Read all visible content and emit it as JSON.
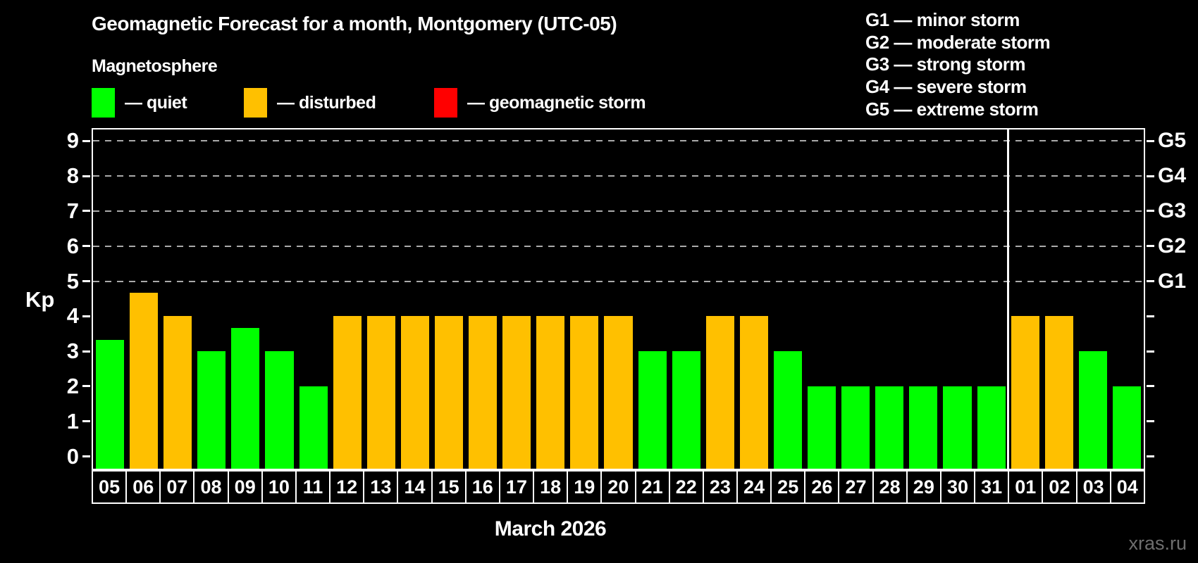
{
  "header": {
    "title": "Geomagnetic Forecast for a month, Montgomery (UTC-05)",
    "subtitle": "Magnetosphere"
  },
  "legend": {
    "items": [
      {
        "name": "quiet",
        "label": "— quiet",
        "color": "#00ff00"
      },
      {
        "name": "disturbed",
        "label": "— disturbed",
        "color": "#ffc000"
      },
      {
        "name": "storm",
        "label": "— geomagnetic storm",
        "color": "#ff0000"
      }
    ]
  },
  "g_legend": {
    "lines": [
      "G1 — minor storm",
      "G2 — moderate storm",
      "G3 — strong storm",
      "G4 — severe storm",
      "G5 — extreme storm"
    ]
  },
  "axis": {
    "y_title": "Kp",
    "x_title": "March 2026",
    "yticks": [
      0,
      1,
      2,
      3,
      4,
      5,
      6,
      7,
      8,
      9
    ]
  },
  "watermark": "xras.ru",
  "colors": {
    "quiet": "#00ff00",
    "disturbed": "#ffc000",
    "storm": "#ff0000",
    "grid": "#aaaaaa",
    "axis": "#ffffff",
    "background": "#000000",
    "watermark": "#6e6e6e"
  },
  "chart_data": {
    "type": "bar",
    "title": "Geomagnetic Forecast for a month, Montgomery (UTC-05)",
    "xlabel": "March 2026",
    "ylabel": "Kp",
    "ylim": [
      -0.35,
      9.33
    ],
    "grid": "dashed horizontal lines at Kp 5-9 only",
    "legend_position": "top",
    "g_levels": [
      {
        "kp": 5,
        "label": "G1"
      },
      {
        "kp": 6,
        "label": "G2"
      },
      {
        "kp": 7,
        "label": "G3"
      },
      {
        "kp": 8,
        "label": "G4"
      },
      {
        "kp": 9,
        "label": "G5"
      }
    ],
    "month_boundary_after_index": 26,
    "categories": [
      "05",
      "06",
      "07",
      "08",
      "09",
      "10",
      "11",
      "12",
      "13",
      "14",
      "15",
      "16",
      "17",
      "18",
      "19",
      "20",
      "21",
      "22",
      "23",
      "24",
      "25",
      "26",
      "27",
      "28",
      "29",
      "30",
      "31",
      "01",
      "02",
      "03",
      "04"
    ],
    "bars": [
      {
        "day": "05",
        "kp": 3.33,
        "status": "quiet"
      },
      {
        "day": "06",
        "kp": 4.67,
        "status": "disturbed"
      },
      {
        "day": "07",
        "kp": 4.0,
        "status": "disturbed"
      },
      {
        "day": "08",
        "kp": 3.0,
        "status": "quiet"
      },
      {
        "day": "09",
        "kp": 3.67,
        "status": "quiet"
      },
      {
        "day": "10",
        "kp": 3.0,
        "status": "quiet"
      },
      {
        "day": "11",
        "kp": 2.0,
        "status": "quiet"
      },
      {
        "day": "12",
        "kp": 4.0,
        "status": "disturbed"
      },
      {
        "day": "13",
        "kp": 4.0,
        "status": "disturbed"
      },
      {
        "day": "14",
        "kp": 4.0,
        "status": "disturbed"
      },
      {
        "day": "15",
        "kp": 4.0,
        "status": "disturbed"
      },
      {
        "day": "16",
        "kp": 4.0,
        "status": "disturbed"
      },
      {
        "day": "17",
        "kp": 4.0,
        "status": "disturbed"
      },
      {
        "day": "18",
        "kp": 4.0,
        "status": "disturbed"
      },
      {
        "day": "19",
        "kp": 4.0,
        "status": "disturbed"
      },
      {
        "day": "20",
        "kp": 4.0,
        "status": "disturbed"
      },
      {
        "day": "21",
        "kp": 3.0,
        "status": "quiet"
      },
      {
        "day": "22",
        "kp": 3.0,
        "status": "quiet"
      },
      {
        "day": "23",
        "kp": 4.0,
        "status": "disturbed"
      },
      {
        "day": "24",
        "kp": 4.0,
        "status": "disturbed"
      },
      {
        "day": "25",
        "kp": 3.0,
        "status": "quiet"
      },
      {
        "day": "26",
        "kp": 2.0,
        "status": "quiet"
      },
      {
        "day": "27",
        "kp": 2.0,
        "status": "quiet"
      },
      {
        "day": "28",
        "kp": 2.0,
        "status": "quiet"
      },
      {
        "day": "29",
        "kp": 2.0,
        "status": "quiet"
      },
      {
        "day": "30",
        "kp": 2.0,
        "status": "quiet"
      },
      {
        "day": "31",
        "kp": 2.0,
        "status": "quiet"
      },
      {
        "day": "01",
        "kp": 4.0,
        "status": "disturbed"
      },
      {
        "day": "02",
        "kp": 4.0,
        "status": "disturbed"
      },
      {
        "day": "03",
        "kp": 3.0,
        "status": "quiet"
      },
      {
        "day": "04",
        "kp": 2.0,
        "status": "quiet"
      }
    ]
  }
}
